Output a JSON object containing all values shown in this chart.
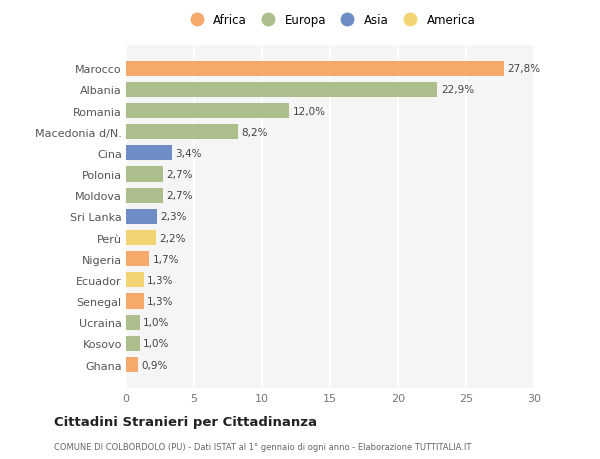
{
  "categories": [
    "Marocco",
    "Albania",
    "Romania",
    "Macedonia d/N.",
    "Cina",
    "Polonia",
    "Moldova",
    "Sri Lanka",
    "Perù",
    "Nigeria",
    "Ecuador",
    "Senegal",
    "Ucraina",
    "Kosovo",
    "Ghana"
  ],
  "values": [
    27.8,
    22.9,
    12.0,
    8.2,
    3.4,
    2.7,
    2.7,
    2.3,
    2.2,
    1.7,
    1.3,
    1.3,
    1.0,
    1.0,
    0.9
  ],
  "labels": [
    "27,8%",
    "22,9%",
    "12,0%",
    "8,2%",
    "3,4%",
    "2,7%",
    "2,7%",
    "2,3%",
    "2,2%",
    "1,7%",
    "1,3%",
    "1,3%",
    "1,0%",
    "1,0%",
    "0,9%"
  ],
  "continents": [
    "Africa",
    "Europa",
    "Europa",
    "Europa",
    "Asia",
    "Europa",
    "Europa",
    "Asia",
    "America",
    "Africa",
    "America",
    "Africa",
    "Europa",
    "Europa",
    "Africa"
  ],
  "colors": {
    "Africa": "#F5A96B",
    "Europa": "#ABBE8C",
    "Asia": "#6E8DC4",
    "America": "#F2D472"
  },
  "legend_order": [
    "Africa",
    "Europa",
    "Asia",
    "America"
  ],
  "title": "Cittadini Stranieri per Cittadinanza",
  "subtitle": "COMUNE DI COLBORDOLO (PU) - Dati ISTAT al 1° gennaio di ogni anno - Elaborazione TUTTITALIA.IT",
  "xlim": [
    0,
    30
  ],
  "xticks": [
    0,
    5,
    10,
    15,
    20,
    25,
    30
  ],
  "background_color": "#ffffff",
  "plot_background": "#f5f5f5"
}
